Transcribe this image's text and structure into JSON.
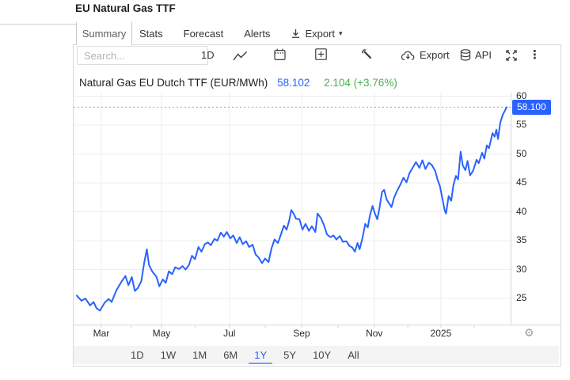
{
  "page": {
    "title": "EU Natural Gas TTF"
  },
  "tabs": {
    "items": [
      {
        "label": "Summary",
        "active": true
      },
      {
        "label": "Stats",
        "active": false
      },
      {
        "label": "Forecast",
        "active": false
      },
      {
        "label": "Alerts",
        "active": false
      },
      {
        "label": "Export",
        "active": false,
        "icon": "download-icon",
        "dropdown": true
      }
    ]
  },
  "toolbar": {
    "search_placeholder": "Search...",
    "interval_label": "1D",
    "export_label": "Export",
    "api_label": "API",
    "icons": [
      "line-chart-icon",
      "calendar-icon",
      "plus-square-icon",
      "wrench-icon",
      "cloud-export-icon",
      "database-icon",
      "fullscreen-icon",
      "kebab-menu-icon"
    ]
  },
  "quote": {
    "name": "Natural Gas EU Dutch TTF (EUR/MWh)",
    "price": "58.102",
    "change": "2.104 (+3.76%)"
  },
  "chart_data": {
    "type": "line",
    "title": "Natural Gas EU Dutch TTF (EUR/MWh)",
    "ylabel": "EUR/MWh",
    "ylim": [
      22.5,
      61
    ],
    "y_ticks": [
      60,
      55,
      50,
      45,
      40,
      35,
      30,
      25
    ],
    "x_ticks": [
      {
        "label": "Mar",
        "f": 0.057
      },
      {
        "label": "May",
        "f": 0.197
      },
      {
        "label": "Jul",
        "f": 0.355
      },
      {
        "label": "Sep",
        "f": 0.523
      },
      {
        "label": "Nov",
        "f": 0.692
      },
      {
        "label": "2025",
        "f": 0.847
      }
    ],
    "minor_ticks_f": [
      0.127,
      0.276,
      0.438,
      0.608,
      0.77,
      0.924
    ],
    "grid": true,
    "legend": "none",
    "last_price": 58.1,
    "last_price_label": "58.100",
    "series": [
      {
        "name": "Natural Gas EU Dutch TTF",
        "color": "#2962ff",
        "points": [
          [
            0.0,
            25.5
          ],
          [
            0.011,
            24.6
          ],
          [
            0.02,
            25.0
          ],
          [
            0.031,
            23.8
          ],
          [
            0.039,
            24.4
          ],
          [
            0.046,
            23.3
          ],
          [
            0.054,
            22.9
          ],
          [
            0.065,
            24.3
          ],
          [
            0.074,
            24.9
          ],
          [
            0.081,
            24.4
          ],
          [
            0.092,
            26.4
          ],
          [
            0.104,
            27.9
          ],
          [
            0.113,
            28.9
          ],
          [
            0.12,
            27.3
          ],
          [
            0.128,
            28.7
          ],
          [
            0.135,
            26.3
          ],
          [
            0.142,
            26.8
          ],
          [
            0.15,
            28.0
          ],
          [
            0.157,
            31.3
          ],
          [
            0.163,
            33.5
          ],
          [
            0.168,
            30.8
          ],
          [
            0.176,
            29.6
          ],
          [
            0.185,
            28.8
          ],
          [
            0.192,
            27.1
          ],
          [
            0.2,
            28.3
          ],
          [
            0.207,
            27.7
          ],
          [
            0.214,
            29.7
          ],
          [
            0.222,
            29.2
          ],
          [
            0.229,
            30.4
          ],
          [
            0.238,
            30.1
          ],
          [
            0.246,
            30.6
          ],
          [
            0.253,
            30.0
          ],
          [
            0.261,
            30.8
          ],
          [
            0.268,
            32.4
          ],
          [
            0.275,
            31.8
          ],
          [
            0.283,
            33.9
          ],
          [
            0.29,
            33.1
          ],
          [
            0.298,
            34.4
          ],
          [
            0.305,
            34.7
          ],
          [
            0.312,
            34.2
          ],
          [
            0.32,
            35.3
          ],
          [
            0.327,
            35.0
          ],
          [
            0.335,
            36.4
          ],
          [
            0.342,
            35.7
          ],
          [
            0.349,
            36.5
          ],
          [
            0.357,
            35.4
          ],
          [
            0.364,
            35.9
          ],
          [
            0.372,
            34.6
          ],
          [
            0.379,
            35.6
          ],
          [
            0.386,
            34.4
          ],
          [
            0.394,
            34.9
          ],
          [
            0.401,
            33.9
          ],
          [
            0.409,
            34.3
          ],
          [
            0.416,
            32.6
          ],
          [
            0.423,
            32.1
          ],
          [
            0.431,
            31.1
          ],
          [
            0.438,
            31.9
          ],
          [
            0.446,
            31.3
          ],
          [
            0.453,
            33.7
          ],
          [
            0.46,
            35.2
          ],
          [
            0.468,
            34.6
          ],
          [
            0.475,
            36.1
          ],
          [
            0.482,
            37.6
          ],
          [
            0.488,
            36.9
          ],
          [
            0.494,
            38.4
          ],
          [
            0.499,
            40.3
          ],
          [
            0.505,
            39.6
          ],
          [
            0.51,
            38.8
          ],
          [
            0.518,
            38.7
          ],
          [
            0.525,
            36.9
          ],
          [
            0.532,
            37.9
          ],
          [
            0.54,
            36.7
          ],
          [
            0.547,
            37.5
          ],
          [
            0.555,
            36.5
          ],
          [
            0.56,
            39.7
          ],
          [
            0.568,
            38.9
          ],
          [
            0.575,
            37.7
          ],
          [
            0.582,
            36.1
          ],
          [
            0.59,
            35.6
          ],
          [
            0.597,
            35.9
          ],
          [
            0.604,
            35.2
          ],
          [
            0.612,
            35.8
          ],
          [
            0.619,
            34.8
          ],
          [
            0.627,
            34.9
          ],
          [
            0.634,
            34.1
          ],
          [
            0.641,
            33.8
          ],
          [
            0.647,
            33.1
          ],
          [
            0.653,
            34.6
          ],
          [
            0.658,
            33.5
          ],
          [
            0.665,
            35.6
          ],
          [
            0.671,
            37.9
          ],
          [
            0.677,
            37.3
          ],
          [
            0.682,
            39.4
          ],
          [
            0.688,
            41.0
          ],
          [
            0.693,
            39.8
          ],
          [
            0.699,
            38.7
          ],
          [
            0.704,
            40.6
          ],
          [
            0.71,
            43.4
          ],
          [
            0.715,
            43.8
          ],
          [
            0.721,
            42.1
          ],
          [
            0.727,
            41.4
          ],
          [
            0.732,
            40.8
          ],
          [
            0.738,
            42.4
          ],
          [
            0.745,
            43.6
          ],
          [
            0.752,
            44.6
          ],
          [
            0.76,
            45.9
          ],
          [
            0.767,
            45.1
          ],
          [
            0.774,
            46.7
          ],
          [
            0.782,
            47.7
          ],
          [
            0.789,
            48.6
          ],
          [
            0.797,
            47.6
          ],
          [
            0.804,
            48.9
          ],
          [
            0.811,
            47.4
          ],
          [
            0.819,
            48.5
          ],
          [
            0.826,
            48.1
          ],
          [
            0.834,
            47.0
          ],
          [
            0.839,
            45.6
          ],
          [
            0.845,
            44.4
          ],
          [
            0.85,
            42.4
          ],
          [
            0.856,
            40.2
          ],
          [
            0.859,
            39.7
          ],
          [
            0.865,
            42.7
          ],
          [
            0.871,
            41.9
          ],
          [
            0.876,
            44.6
          ],
          [
            0.882,
            46.2
          ],
          [
            0.887,
            45.6
          ],
          [
            0.893,
            50.4
          ],
          [
            0.898,
            48.0
          ],
          [
            0.904,
            47.2
          ],
          [
            0.909,
            48.8
          ],
          [
            0.915,
            46.3
          ],
          [
            0.922,
            47.1
          ],
          [
            0.93,
            49.0
          ],
          [
            0.935,
            48.4
          ],
          [
            0.943,
            50.2
          ],
          [
            0.948,
            49.2
          ],
          [
            0.954,
            51.5
          ],
          [
            0.959,
            51.0
          ],
          [
            0.967,
            53.6
          ],
          [
            0.972,
            53.0
          ],
          [
            0.976,
            54.2
          ],
          [
            0.98,
            52.6
          ],
          [
            0.985,
            55.4
          ],
          [
            0.991,
            56.8
          ],
          [
            0.996,
            57.5
          ],
          [
            1.0,
            58.1
          ]
        ]
      }
    ]
  },
  "range_bar": {
    "options": [
      "1D",
      "1W",
      "1M",
      "6M",
      "1Y",
      "5Y",
      "10Y",
      "All"
    ],
    "selected": "1Y"
  },
  "colors": {
    "accent_blue": "#2962ff",
    "positive_green": "#4caf50",
    "dotted_line": "#8fa9f2",
    "grid": "#ededed",
    "axis_line": "#d6d6d6",
    "panel_border": "#d9d9d9",
    "last_price_bg": "#2962ff",
    "range_bar_bg": "#f4f4f4"
  }
}
